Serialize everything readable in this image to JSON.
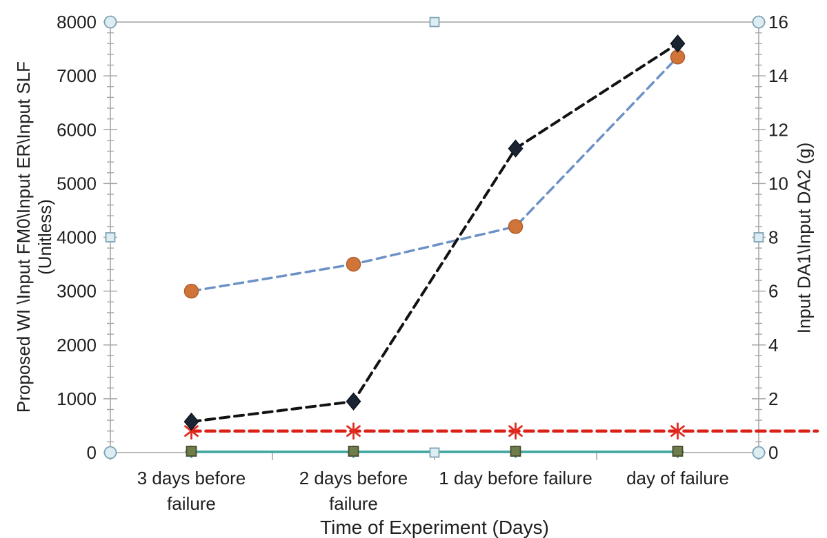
{
  "chart": {
    "background": "#ffffff",
    "border_color": "#a6a6a6",
    "text_color": "#1f1f1f",
    "selection_handles": {
      "visible": true,
      "corner_shape": "circle",
      "edge_shape": "square",
      "fill": "#dcedf4",
      "stroke": "#7fa2b4"
    }
  },
  "chart_data": {
    "type": "line",
    "title": "",
    "xlabel": "Time of Experiment (Days)",
    "ylabel_left": "Proposed WI \\Input FM0\\Input ER\\Input SLF",
    "ylabel_left_line2": "(Unitless)",
    "ylabel_right": "Input DA1\\Input DA2 (g)",
    "legend": "none",
    "grid": "none",
    "categories": [
      "3 days before failure",
      "2 days before failure",
      "1 day before failure",
      "day of failure"
    ],
    "categories_wrapped": [
      [
        "3 days before",
        "failure"
      ],
      [
        "2 days before",
        "failure"
      ],
      [
        "1 day before failure"
      ],
      [
        "day of failure"
      ]
    ],
    "y_left": {
      "min": 0,
      "max": 8000,
      "ticks": [
        0,
        1000,
        2000,
        3000,
        4000,
        5000,
        6000,
        7000,
        8000
      ],
      "minor_step": 200
    },
    "y_right": {
      "min": 0,
      "max": 16,
      "ticks": [
        0,
        2,
        4,
        6,
        8,
        10,
        12,
        14,
        16
      ],
      "minor_step": 0.4
    },
    "series": [
      {
        "name": "Proposed WI",
        "axis": "left",
        "values": [
          575,
          950,
          5650,
          7600
        ],
        "line": "dashed",
        "line_color": "#121212",
        "line_width": 4,
        "marker": "diamond",
        "marker_color": "#1a2433",
        "marker_edge": "#0d1420"
      },
      {
        "name": "Input DA1",
        "axis": "right",
        "values": [
          6,
          7,
          8.4,
          14.7
        ],
        "line": "dashed",
        "line_color": "#6c91c6",
        "line_width": 3.5,
        "marker": "circle",
        "marker_color": "#d0743a",
        "marker_edge": "#b05e2c"
      },
      {
        "name": "Input FM0",
        "axis": "left",
        "values": [
          400,
          400,
          400,
          400
        ],
        "line": "dashed",
        "line_color": "#db2018",
        "line_width": 4.5,
        "marker": "asterisk",
        "marker_color": "#e02b20",
        "marker_edge": "#e02b20",
        "extends_to_right_edge": true
      },
      {
        "name": "Input ER",
        "axis": "left",
        "values": [
          25,
          25,
          25,
          25
        ],
        "line": "none",
        "line_color": "#6f7d4b",
        "line_width": 0,
        "marker": "square",
        "marker_color": "#6f7d4b",
        "marker_edge": "#474a2e"
      },
      {
        "name": "Input SLF",
        "axis": "left",
        "values": [
          15,
          15,
          15,
          15
        ],
        "line": "solid",
        "line_color": "#3da79f",
        "line_width": 3.5,
        "marker": "plus",
        "marker_color": "#3da79f",
        "marker_edge": "#3da79f"
      }
    ],
    "note": "Series-to-name mapping inferred from axis titles; flat series overlap just above zero. Input DA2 (right axis) is hidden within the near-zero cluster."
  }
}
